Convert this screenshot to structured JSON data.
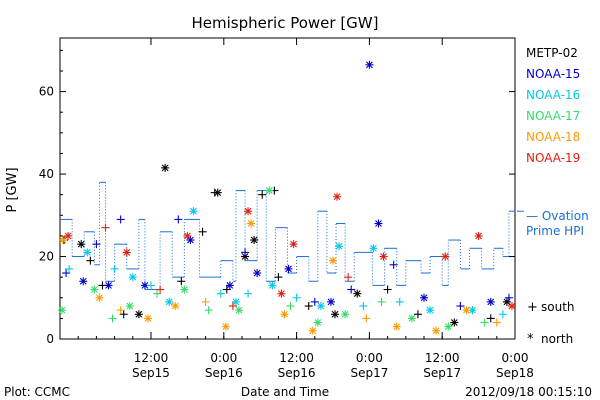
{
  "chart_data": {
    "type": "scatter",
    "title": "Hemispheric Power [GW]",
    "ylabel": "P [GW]",
    "xlabel": "Date and Time",
    "ylim": [
      0,
      73
    ],
    "yticks": [
      0,
      20,
      40,
      60
    ],
    "xlim": [
      "2012-09-14 21:00",
      "2012-09-18 00:00"
    ],
    "xticks": [
      {
        "time": "2012-09-15 12:00",
        "line1": "12:00",
        "line2": "Sep15"
      },
      {
        "time": "2012-09-16 00:00",
        "line1": "0:00",
        "line2": "Sep16"
      },
      {
        "time": "2012-09-16 12:00",
        "line1": "12:00",
        "line2": "Sep16"
      },
      {
        "time": "2012-09-17 00:00",
        "line1": "0:00",
        "line2": "Sep17"
      },
      {
        "time": "2012-09-17 12:00",
        "line1": "12:00",
        "line2": "Sep17"
      },
      {
        "time": "2012-09-18 00:00",
        "line1": "0:00",
        "line2": "Sep18"
      }
    ],
    "legend_position": "right",
    "series": [
      {
        "name": "METP-02",
        "color": "#000000",
        "points": [
          {
            "t": "2012-09-14 21:40",
            "y": 24,
            "m": "+"
          },
          {
            "t": "2012-09-15 00:30",
            "y": 23,
            "m": "*"
          },
          {
            "t": "2012-09-15 02:00",
            "y": 19,
            "m": "+"
          },
          {
            "t": "2012-09-15 04:00",
            "y": 13,
            "m": "+"
          },
          {
            "t": "2012-09-15 07:30",
            "y": 6,
            "m": "+"
          },
          {
            "t": "2012-09-15 10:00",
            "y": 6,
            "m": "*"
          },
          {
            "t": "2012-09-15 14:20",
            "y": 41.5,
            "m": "*"
          },
          {
            "t": "2012-09-15 17:00",
            "y": 14,
            "m": "+"
          },
          {
            "t": "2012-09-15 20:30",
            "y": 26,
            "m": "+"
          },
          {
            "t": "2012-09-15 22:30",
            "y": 35.5,
            "m": "+"
          },
          {
            "t": "2012-09-15 23:00",
            "y": 35.5,
            "m": "*"
          },
          {
            "t": "2012-09-16 00:30",
            "y": 12,
            "m": "+"
          },
          {
            "t": "2012-09-16 03:30",
            "y": 20,
            "m": "*"
          },
          {
            "t": "2012-09-16 05:00",
            "y": 24,
            "m": "*"
          },
          {
            "t": "2012-09-16 06:20",
            "y": 35,
            "m": "+"
          },
          {
            "t": "2012-09-16 08:20",
            "y": 36,
            "m": "+"
          },
          {
            "t": "2012-09-16 09:00",
            "y": 15,
            "m": "+"
          },
          {
            "t": "2012-09-16 14:00",
            "y": 8,
            "m": "+"
          },
          {
            "t": "2012-09-16 18:20",
            "y": 6,
            "m": "*"
          },
          {
            "t": "2012-09-16 22:00",
            "y": 11,
            "m": "*"
          },
          {
            "t": "2012-09-17 03:00",
            "y": 12,
            "m": "+"
          },
          {
            "t": "2012-09-17 08:00",
            "y": 6,
            "m": "+"
          },
          {
            "t": "2012-09-17 14:00",
            "y": 4,
            "m": "*"
          },
          {
            "t": "2012-09-17 20:00",
            "y": 5,
            "m": "+"
          },
          {
            "t": "2012-09-17 22:40",
            "y": 9,
            "m": "*"
          }
        ]
      },
      {
        "name": "NOAA-15",
        "color": "#0000cc",
        "points": [
          {
            "t": "2012-09-14 22:00",
            "y": 16,
            "m": "+"
          },
          {
            "t": "2012-09-15 00:50",
            "y": 14,
            "m": "*"
          },
          {
            "t": "2012-09-15 03:00",
            "y": 23,
            "m": "+"
          },
          {
            "t": "2012-09-15 05:00",
            "y": 13,
            "m": "*"
          },
          {
            "t": "2012-09-15 07:00",
            "y": 29,
            "m": "+"
          },
          {
            "t": "2012-09-15 11:00",
            "y": 13,
            "m": "*"
          },
          {
            "t": "2012-09-15 16:30",
            "y": 29,
            "m": "+"
          },
          {
            "t": "2012-09-15 18:30",
            "y": 24,
            "m": "*"
          },
          {
            "t": "2012-09-16 01:00",
            "y": 13,
            "m": "*"
          },
          {
            "t": "2012-09-16 03:30",
            "y": 21,
            "m": "+"
          },
          {
            "t": "2012-09-16 05:30",
            "y": 16,
            "m": "*"
          },
          {
            "t": "2012-09-16 10:40",
            "y": 17,
            "m": "*"
          },
          {
            "t": "2012-09-16 15:00",
            "y": 9,
            "m": "+"
          },
          {
            "t": "2012-09-16 17:40",
            "y": 9,
            "m": "*"
          },
          {
            "t": "2012-09-16 21:00",
            "y": 12,
            "m": "+"
          },
          {
            "t": "2012-09-17 00:00",
            "y": 66.5,
            "m": "*"
          },
          {
            "t": "2012-09-17 01:30",
            "y": 28,
            "m": "*"
          },
          {
            "t": "2012-09-17 04:00",
            "y": 18,
            "m": "+"
          },
          {
            "t": "2012-09-17 09:00",
            "y": 10,
            "m": "*"
          },
          {
            "t": "2012-09-17 15:00",
            "y": 8,
            "m": "+"
          },
          {
            "t": "2012-09-17 20:00",
            "y": 9,
            "m": "*"
          },
          {
            "t": "2012-09-17 23:00",
            "y": 10,
            "m": "+"
          }
        ]
      },
      {
        "name": "NOAA-16",
        "color": "#00c8e8",
        "points": [
          {
            "t": "2012-09-14 22:30",
            "y": 17,
            "m": "+"
          },
          {
            "t": "2012-09-15 01:30",
            "y": 21,
            "m": "*"
          },
          {
            "t": "2012-09-15 06:00",
            "y": 17,
            "m": "+"
          },
          {
            "t": "2012-09-15 09:00",
            "y": 15,
            "m": "*"
          },
          {
            "t": "2012-09-15 12:00",
            "y": 13,
            "m": "+"
          },
          {
            "t": "2012-09-15 15:00",
            "y": 9,
            "m": "*"
          },
          {
            "t": "2012-09-15 19:00",
            "y": 31,
            "m": "*"
          },
          {
            "t": "2012-09-15 23:30",
            "y": 11,
            "m": "+"
          },
          {
            "t": "2012-09-16 02:00",
            "y": 9,
            "m": "*"
          },
          {
            "t": "2012-09-16 04:00",
            "y": 11,
            "m": "+"
          },
          {
            "t": "2012-09-16 08:00",
            "y": 13,
            "m": "*"
          },
          {
            "t": "2012-09-16 12:00",
            "y": 10,
            "m": "+"
          },
          {
            "t": "2012-09-16 16:00",
            "y": 8,
            "m": "*"
          },
          {
            "t": "2012-09-16 19:00",
            "y": 22.5,
            "m": "*"
          },
          {
            "t": "2012-09-16 23:00",
            "y": 8,
            "m": "+"
          },
          {
            "t": "2012-09-17 00:40",
            "y": 22,
            "m": "*"
          },
          {
            "t": "2012-09-17 05:00",
            "y": 9,
            "m": "+"
          },
          {
            "t": "2012-09-17 10:00",
            "y": 7,
            "m": "*"
          },
          {
            "t": "2012-09-17 17:00",
            "y": 7,
            "m": "*"
          },
          {
            "t": "2012-09-17 22:00",
            "y": 6,
            "m": "+"
          }
        ]
      },
      {
        "name": "NOAA-17",
        "color": "#33dd66",
        "points": [
          {
            "t": "2012-09-14 21:20",
            "y": 7,
            "m": "*"
          },
          {
            "t": "2012-09-15 02:40",
            "y": 12,
            "m": "*"
          },
          {
            "t": "2012-09-15 05:40",
            "y": 5,
            "m": "+"
          },
          {
            "t": "2012-09-15 08:30",
            "y": 8,
            "m": "*"
          },
          {
            "t": "2012-09-15 13:00",
            "y": 11,
            "m": "+"
          },
          {
            "t": "2012-09-15 17:30",
            "y": 12,
            "m": "*"
          },
          {
            "t": "2012-09-15 21:30",
            "y": 7,
            "m": "+"
          },
          {
            "t": "2012-09-16 02:30",
            "y": 7,
            "m": "*"
          },
          {
            "t": "2012-09-16 07:30",
            "y": 36,
            "m": "*"
          },
          {
            "t": "2012-09-16 11:00",
            "y": 8,
            "m": "+"
          },
          {
            "t": "2012-09-16 15:30",
            "y": 4,
            "m": "*"
          },
          {
            "t": "2012-09-16 20:00",
            "y": 6,
            "m": "*"
          },
          {
            "t": "2012-09-17 02:00",
            "y": 9,
            "m": "+"
          },
          {
            "t": "2012-09-17 07:00",
            "y": 5,
            "m": "*"
          },
          {
            "t": "2012-09-17 13:00",
            "y": 3,
            "m": "*"
          },
          {
            "t": "2012-09-17 19:00",
            "y": 4,
            "m": "+"
          }
        ]
      },
      {
        "name": "NOAA-18",
        "color": "#ff9900",
        "points": [
          {
            "t": "2012-09-14 21:30",
            "y": 24,
            "m": "*"
          },
          {
            "t": "2012-09-15 03:30",
            "y": 10,
            "m": "*"
          },
          {
            "t": "2012-09-15 07:00",
            "y": 7,
            "m": "+"
          },
          {
            "t": "2012-09-15 11:30",
            "y": 5,
            "m": "*"
          },
          {
            "t": "2012-09-15 16:00",
            "y": 8,
            "m": "*"
          },
          {
            "t": "2012-09-15 21:00",
            "y": 9,
            "m": "+"
          },
          {
            "t": "2012-09-16 00:20",
            "y": 3,
            "m": "*"
          },
          {
            "t": "2012-09-16 04:30",
            "y": 28,
            "m": "*"
          },
          {
            "t": "2012-09-16 10:00",
            "y": 6,
            "m": "*"
          },
          {
            "t": "2012-09-16 14:40",
            "y": 2,
            "m": "*"
          },
          {
            "t": "2012-09-16 18:00",
            "y": 19,
            "m": "*"
          },
          {
            "t": "2012-09-16 23:30",
            "y": 5,
            "m": "+"
          },
          {
            "t": "2012-09-17 04:30",
            "y": 3,
            "m": "*"
          },
          {
            "t": "2012-09-17 11:00",
            "y": 2,
            "m": "*"
          },
          {
            "t": "2012-09-17 16:00",
            "y": 7,
            "m": "*"
          },
          {
            "t": "2012-09-17 21:00",
            "y": 4,
            "m": "+"
          }
        ]
      },
      {
        "name": "NOAA-19",
        "color": "#e02010",
        "points": [
          {
            "t": "2012-09-14 22:20",
            "y": 25,
            "m": "*"
          },
          {
            "t": "2012-09-15 04:30",
            "y": 27,
            "m": "+"
          },
          {
            "t": "2012-09-15 08:00",
            "y": 21,
            "m": "*"
          },
          {
            "t": "2012-09-15 13:30",
            "y": 12,
            "m": "+"
          },
          {
            "t": "2012-09-15 18:00",
            "y": 25,
            "m": "*"
          },
          {
            "t": "2012-09-16 01:30",
            "y": 8,
            "m": "+"
          },
          {
            "t": "2012-09-16 04:00",
            "y": 31,
            "m": "*"
          },
          {
            "t": "2012-09-16 09:30",
            "y": 11,
            "m": "*"
          },
          {
            "t": "2012-09-16 11:30",
            "y": 23,
            "m": "*"
          },
          {
            "t": "2012-09-16 18:40",
            "y": 34.5,
            "m": "*"
          },
          {
            "t": "2012-09-16 20:30",
            "y": 15,
            "m": "+"
          },
          {
            "t": "2012-09-17 02:20",
            "y": 20,
            "m": "*"
          },
          {
            "t": "2012-09-17 12:30",
            "y": 20,
            "m": "*"
          },
          {
            "t": "2012-09-17 18:00",
            "y": 25,
            "m": "*"
          },
          {
            "t": "2012-09-17 23:30",
            "y": 8,
            "m": "*"
          }
        ]
      }
    ],
    "ovation": {
      "name_line1": "— Ovation",
      "name_line2": "Prime HPI",
      "color": "#1a6fd6",
      "style": "dotted step",
      "points": [
        {
          "t": "2012-09-14 21:00",
          "y": 29
        },
        {
          "t": "2012-09-14 23:00",
          "y": 20
        },
        {
          "t": "2012-09-15 01:00",
          "y": 26
        },
        {
          "t": "2012-09-15 02:40",
          "y": 18
        },
        {
          "t": "2012-09-15 03:30",
          "y": 38
        },
        {
          "t": "2012-09-15 04:30",
          "y": 14
        },
        {
          "t": "2012-09-15 06:00",
          "y": 23
        },
        {
          "t": "2012-09-15 08:00",
          "y": 17
        },
        {
          "t": "2012-09-15 10:00",
          "y": 29
        },
        {
          "t": "2012-09-15 11:00",
          "y": 12
        },
        {
          "t": "2012-09-15 13:30",
          "y": 26
        },
        {
          "t": "2012-09-15 15:30",
          "y": 15
        },
        {
          "t": "2012-09-15 17:30",
          "y": 29
        },
        {
          "t": "2012-09-15 20:00",
          "y": 15
        },
        {
          "t": "2012-09-15 23:30",
          "y": 19
        },
        {
          "t": "2012-09-16 01:30",
          "y": 14
        },
        {
          "t": "2012-09-16 02:00",
          "y": 36
        },
        {
          "t": "2012-09-16 03:30",
          "y": 19
        },
        {
          "t": "2012-09-16 05:30",
          "y": 36
        },
        {
          "t": "2012-09-16 07:00",
          "y": 14
        },
        {
          "t": "2012-09-16 08:30",
          "y": 27
        },
        {
          "t": "2012-09-16 10:30",
          "y": 16
        },
        {
          "t": "2012-09-16 12:00",
          "y": 20
        },
        {
          "t": "2012-09-16 14:00",
          "y": 14
        },
        {
          "t": "2012-09-16 15:30",
          "y": 31
        },
        {
          "t": "2012-09-16 17:00",
          "y": 16
        },
        {
          "t": "2012-09-16 18:30",
          "y": 28
        },
        {
          "t": "2012-09-16 20:00",
          "y": 14
        },
        {
          "t": "2012-09-16 21:30",
          "y": 21
        },
        {
          "t": "2012-09-17 00:30",
          "y": 13
        },
        {
          "t": "2012-09-17 02:30",
          "y": 22
        },
        {
          "t": "2012-09-17 04:30",
          "y": 13
        },
        {
          "t": "2012-09-17 06:00",
          "y": 19
        },
        {
          "t": "2012-09-17 08:30",
          "y": 16
        },
        {
          "t": "2012-09-17 10:00",
          "y": 20
        },
        {
          "t": "2012-09-17 12:00",
          "y": 13
        },
        {
          "t": "2012-09-17 13:00",
          "y": 24
        },
        {
          "t": "2012-09-17 15:00",
          "y": 17
        },
        {
          "t": "2012-09-17 16:30",
          "y": 22
        },
        {
          "t": "2012-09-17 18:30",
          "y": 17
        },
        {
          "t": "2012-09-17 20:30",
          "y": 22
        },
        {
          "t": "2012-09-17 22:00",
          "y": 20
        },
        {
          "t": "2012-09-17 23:00",
          "y": 31
        },
        {
          "t": "2012-09-18 00:00",
          "y": 31
        }
      ]
    },
    "marker_legend": {
      "plus_symbol": "+",
      "plus_label": "south",
      "star_symbol": "*",
      "star_label": "north"
    }
  },
  "footer": {
    "left": "Plot: CCMC",
    "right": "2012/09/18 00:15:10"
  }
}
